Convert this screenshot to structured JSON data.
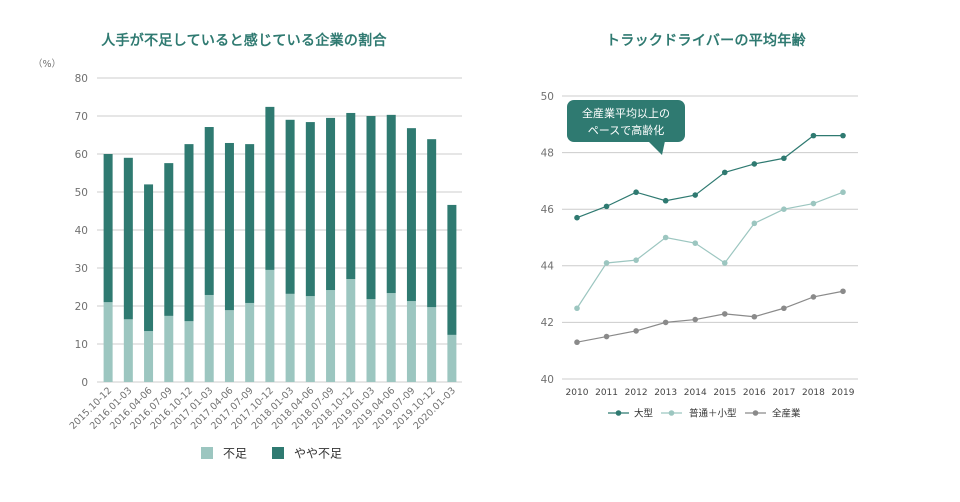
{
  "colors": {
    "title": "#2f7a71",
    "dark_teal": "#2f7a71",
    "light_teal": "#9cc6c0",
    "gray": "#8a8a8a",
    "grid": "#cccccc",
    "axis_text": "#707070",
    "legend_text": "#333333",
    "background": "#ffffff"
  },
  "chart_data": [
    {
      "type": "bar",
      "stacked": true,
      "title": "人手が不足していると感じている企業の割合",
      "unit_label": "（%）",
      "categories": [
        "2015.10-12",
        "2016.01-03",
        "2016.04-06",
        "2016.07-09",
        "2016.10-12",
        "2017.01-03",
        "2017.04-06",
        "2017.07-09",
        "2017.10-12",
        "2018.01-03",
        "2018.04-06",
        "2018.07-09",
        "2018.10-12",
        "2019.01-03",
        "2019.04-06",
        "2019.07-09",
        "2019.10-12",
        "2020.01-03"
      ],
      "series": [
        {
          "name": "不足",
          "color": "#9cc6c0",
          "values": [
            21.0,
            16.5,
            13.4,
            17.4,
            16.0,
            22.9,
            18.9,
            20.8,
            29.5,
            23.2,
            22.6,
            24.2,
            27.1,
            21.8,
            23.4,
            21.3,
            19.7,
            12.4
          ]
        },
        {
          "name": "やや不足",
          "color": "#2f7a71",
          "values": [
            39.0,
            42.5,
            38.6,
            40.2,
            46.6,
            44.2,
            44.0,
            41.8,
            42.9,
            45.8,
            45.8,
            45.3,
            43.7,
            48.2,
            46.9,
            45.5,
            44.2,
            34.2
          ]
        }
      ],
      "xlabel": "",
      "ylabel": "",
      "ylim": [
        0,
        80
      ],
      "yticks": [
        0,
        10,
        20,
        30,
        40,
        50,
        60,
        70,
        80
      ],
      "grid": true,
      "legend": "bottom-center"
    },
    {
      "type": "line",
      "title": "トラックドライバーの平均年齢",
      "x": [
        2010,
        2011,
        2012,
        2013,
        2014,
        2015,
        2016,
        2017,
        2018,
        2019
      ],
      "series": [
        {
          "name": "大型",
          "color": "#2f7a71",
          "values": [
            45.7,
            46.1,
            46.6,
            46.3,
            46.5,
            47.3,
            47.6,
            47.8,
            48.6,
            48.6
          ]
        },
        {
          "name": "普通＋小型",
          "color": "#9cc6c0",
          "values": [
            42.5,
            44.1,
            44.2,
            45.0,
            44.8,
            44.1,
            45.5,
            46.0,
            46.2,
            46.6
          ]
        },
        {
          "name": "全産業",
          "color": "#8a8a8a",
          "values": [
            41.3,
            41.5,
            41.7,
            42.0,
            42.1,
            42.3,
            42.2,
            42.5,
            42.9,
            43.1
          ]
        }
      ],
      "xlabel": "",
      "ylabel": "",
      "ylim": [
        40,
        50
      ],
      "yticks": [
        40,
        42,
        44,
        46,
        48,
        50
      ],
      "grid": true,
      "legend": "bottom-center",
      "annotation": {
        "lines": [
          "全産業平均以上の",
          "ペースで高齢化"
        ],
        "color": "#2f7a71"
      }
    }
  ]
}
